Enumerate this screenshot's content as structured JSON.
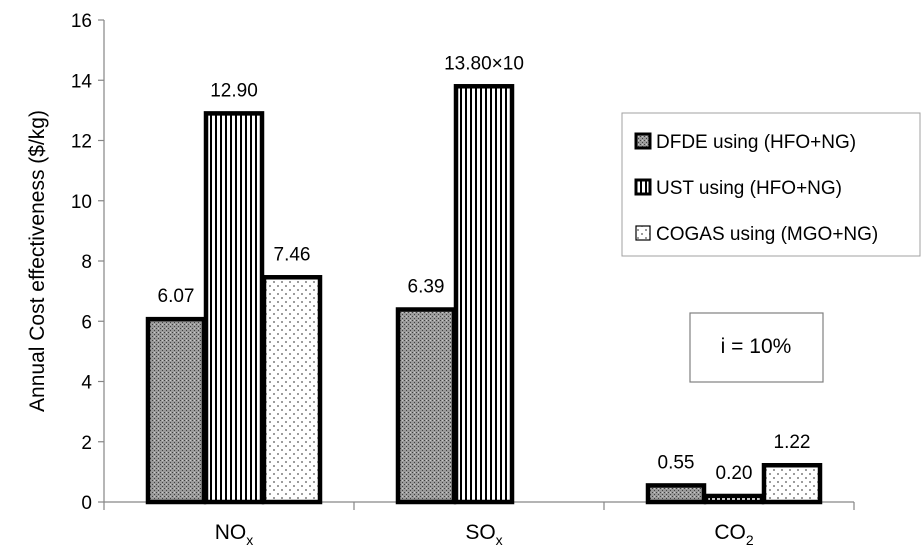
{
  "chart_data": {
    "type": "bar",
    "ylabel": "Annual Cost effectiveness ($/kg)",
    "ylim": [
      0,
      16
    ],
    "yticks": [
      "0",
      "2",
      "4",
      "6",
      "8",
      "10",
      "12",
      "14",
      "16"
    ],
    "categories": [
      {
        "base": "NO",
        "sub": "x"
      },
      {
        "base": "SO",
        "sub": "x"
      },
      {
        "base": "CO",
        "sub": "2"
      }
    ],
    "series": [
      {
        "name": "DFDE using (HFO+NG)",
        "pattern": "crosshatch",
        "values": [
          6.07,
          6.39,
          0.55
        ],
        "labels": [
          "6.07",
          "6.39",
          "0.55"
        ]
      },
      {
        "name": "UST using (HFO+NG)",
        "pattern": "vertical-lines",
        "values": [
          12.9,
          13.8,
          0.2
        ],
        "labels": [
          "12.90",
          "13.80×10",
          "0.20"
        ]
      },
      {
        "name": "COGAS using (MGO+NG)",
        "pattern": "dots",
        "values": [
          7.46,
          null,
          1.22
        ],
        "labels": [
          "7.46",
          null,
          "1.22"
        ]
      }
    ],
    "legend_position": "right",
    "annotation": "i = 10%",
    "grid": false
  }
}
